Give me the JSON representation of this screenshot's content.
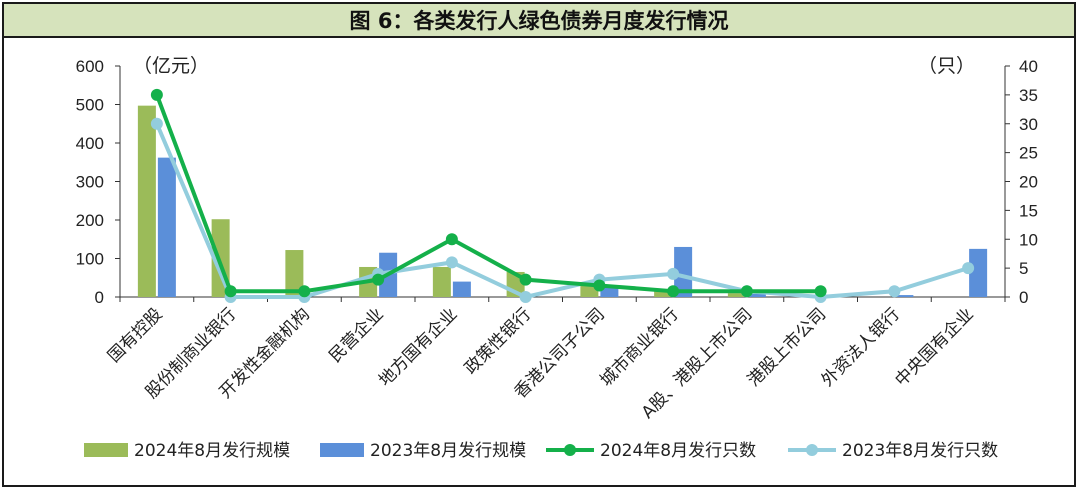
{
  "title": "图 6：各类发行人绿色债券月度发行情况",
  "chart_data": {
    "type": "bar",
    "categories": [
      "国有控股",
      "股份制商业银行",
      "开发性金融机构",
      "民营企业",
      "地方国有企业",
      "政策性银行",
      "香港公司子公司",
      "城市商业银行",
      "A股、港股上市公司",
      "港股上市公司",
      "外资法人银行",
      "中央国有企业"
    ],
    "y_left": {
      "unit": "（亿元）",
      "ylim": [
        0,
        600
      ],
      "ticks": [
        0,
        100,
        200,
        300,
        400,
        500,
        600
      ]
    },
    "y_right": {
      "unit": "（只）",
      "ylim": [
        0,
        40
      ],
      "ticks": [
        0,
        5,
        10,
        15,
        20,
        25,
        30,
        35,
        40
      ]
    },
    "series": [
      {
        "name": "2024年8月发行规模",
        "type": "bar",
        "axis": "left",
        "color": "#9bbb59",
        "values": [
          497,
          202,
          122,
          78,
          78,
          65,
          30,
          18,
          10,
          5,
          0,
          0
        ]
      },
      {
        "name": "2023年8月发行规模",
        "type": "bar",
        "axis": "left",
        "color": "#5b8fd9",
        "values": [
          362,
          0,
          0,
          115,
          40,
          0,
          25,
          130,
          8,
          0,
          5,
          125
        ]
      },
      {
        "name": "2024年8月发行只数",
        "type": "line",
        "axis": "right",
        "color": "#14b04a",
        "values": [
          35,
          1,
          1,
          3,
          10,
          3,
          2,
          1,
          1,
          1,
          null,
          null
        ]
      },
      {
        "name": "2023年8月发行只数",
        "type": "line",
        "axis": "right",
        "color": "#93cddd",
        "values": [
          30,
          0,
          0,
          4,
          6,
          0,
          3,
          4,
          1,
          0,
          1,
          5
        ]
      }
    ],
    "grid": false,
    "legend_position": "bottom"
  }
}
